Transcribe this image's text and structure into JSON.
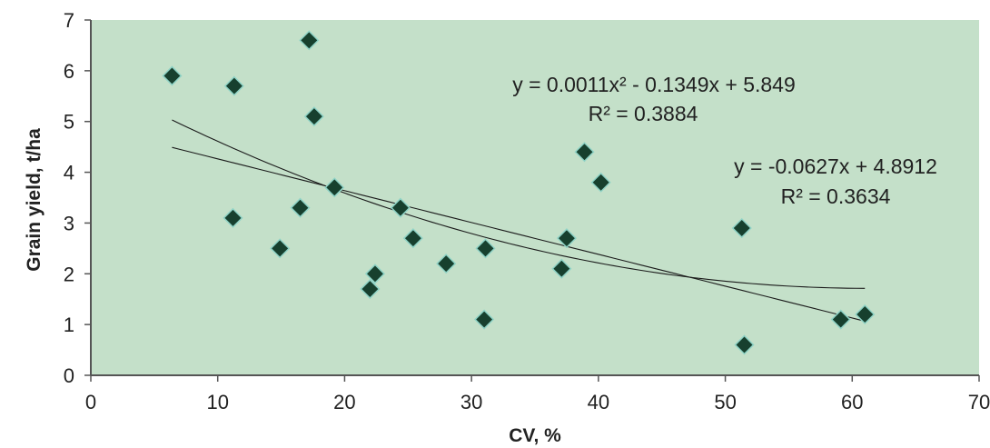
{
  "chart_data": {
    "type": "scatter",
    "title": "",
    "xlabel": "CV, %",
    "ylabel": "Grain yield, t/ha",
    "xlim": [
      0,
      70
    ],
    "ylim": [
      0,
      7
    ],
    "xticks": [
      "0",
      "10",
      "20",
      "30",
      "40",
      "50",
      "60",
      "70"
    ],
    "yticks": [
      "0",
      "1",
      "2",
      "3",
      "4",
      "5",
      "6",
      "7"
    ],
    "grid": false,
    "plot_background": "#c4e0c9",
    "marker_color": "#17402e",
    "marker_edge_color": "#8fd3c6",
    "points": [
      {
        "x": 6.4,
        "y": 5.9
      },
      {
        "x": 11.3,
        "y": 5.7
      },
      {
        "x": 11.2,
        "y": 3.1
      },
      {
        "x": 14.9,
        "y": 2.5
      },
      {
        "x": 16.5,
        "y": 3.3
      },
      {
        "x": 17.2,
        "y": 6.6
      },
      {
        "x": 17.6,
        "y": 5.1
      },
      {
        "x": 19.2,
        "y": 3.7
      },
      {
        "x": 22.0,
        "y": 1.7
      },
      {
        "x": 22.4,
        "y": 2.0
      },
      {
        "x": 24.4,
        "y": 3.3
      },
      {
        "x": 25.4,
        "y": 2.7
      },
      {
        "x": 28.0,
        "y": 2.2
      },
      {
        "x": 31.1,
        "y": 2.5
      },
      {
        "x": 31.0,
        "y": 1.1
      },
      {
        "x": 37.1,
        "y": 2.1
      },
      {
        "x": 37.5,
        "y": 2.7
      },
      {
        "x": 38.9,
        "y": 4.4
      },
      {
        "x": 40.2,
        "y": 3.8
      },
      {
        "x": 51.3,
        "y": 2.9
      },
      {
        "x": 51.5,
        "y": 0.6
      },
      {
        "x": 59.1,
        "y": 1.1
      },
      {
        "x": 61.0,
        "y": 1.2
      }
    ],
    "trendlines": [
      {
        "kind": "polynomial",
        "coefficients": [
          0.0011,
          -0.1349,
          5.849
        ],
        "x_range": [
          6.4,
          61.0
        ],
        "equation": "y = 0.0011x² - 0.1349x + 5.849",
        "r2": "R² = 0.3884"
      },
      {
        "kind": "linear",
        "coefficients": [
          -0.0627,
          4.8912
        ],
        "x_range": [
          6.4,
          61.0
        ],
        "equation": "y = -0.0627x + 4.8912",
        "r2": "R² = 0.3634"
      }
    ]
  }
}
